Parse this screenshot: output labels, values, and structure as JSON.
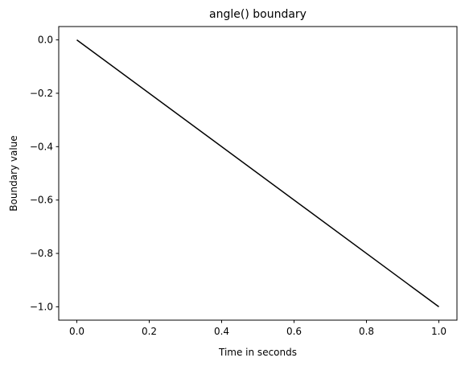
{
  "chart_data": {
    "type": "line",
    "title": "angle() boundary",
    "xlabel": "Time in seconds",
    "ylabel": "Boundary value",
    "xlim": [
      -0.05,
      1.05
    ],
    "ylim": [
      -1.05,
      0.05
    ],
    "xticks": [
      0.0,
      0.2,
      0.4,
      0.6,
      0.8,
      1.0
    ],
    "xtick_labels": [
      "0.0",
      "0.2",
      "0.4",
      "0.6",
      "0.8",
      "1.0"
    ],
    "yticks": [
      0.0,
      -0.2,
      -0.4,
      -0.6,
      -0.8,
      -1.0
    ],
    "ytick_labels": [
      "0.0",
      "−0.2",
      "−0.4",
      "−0.6",
      "−0.8",
      "−1.0"
    ],
    "grid": false,
    "series": [
      {
        "x": [
          0.0,
          1.0
        ],
        "y": [
          0.0,
          -1.0
        ],
        "color": "#000000"
      }
    ]
  }
}
